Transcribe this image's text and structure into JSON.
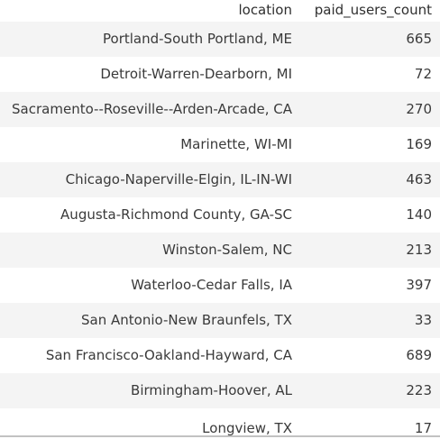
{
  "table": {
    "columns": [
      "location",
      "paid_users_count"
    ],
    "rows": [
      {
        "location": "Portland-South Portland, ME",
        "paid_users_count": "665"
      },
      {
        "location": "Detroit-Warren-Dearborn, MI",
        "paid_users_count": "72"
      },
      {
        "location": "Sacramento--Roseville--Arden-Arcade, CA",
        "paid_users_count": "270"
      },
      {
        "location": "Marinette, WI-MI",
        "paid_users_count": "169"
      },
      {
        "location": "Chicago-Naperville-Elgin, IL-IN-WI",
        "paid_users_count": "463"
      },
      {
        "location": "Augusta-Richmond County, GA-SC",
        "paid_users_count": "140"
      },
      {
        "location": "Winston-Salem, NC",
        "paid_users_count": "213"
      },
      {
        "location": "Waterloo-Cedar Falls, IA",
        "paid_users_count": "397"
      },
      {
        "location": "San Antonio-New Braunfels, TX",
        "paid_users_count": "33"
      },
      {
        "location": "San Francisco-Oakland-Hayward, CA",
        "paid_users_count": "689"
      },
      {
        "location": "Birmingham-Hoover, AL",
        "paid_users_count": "223"
      },
      {
        "location": "Longview, TX",
        "paid_users_count": "17"
      }
    ]
  }
}
